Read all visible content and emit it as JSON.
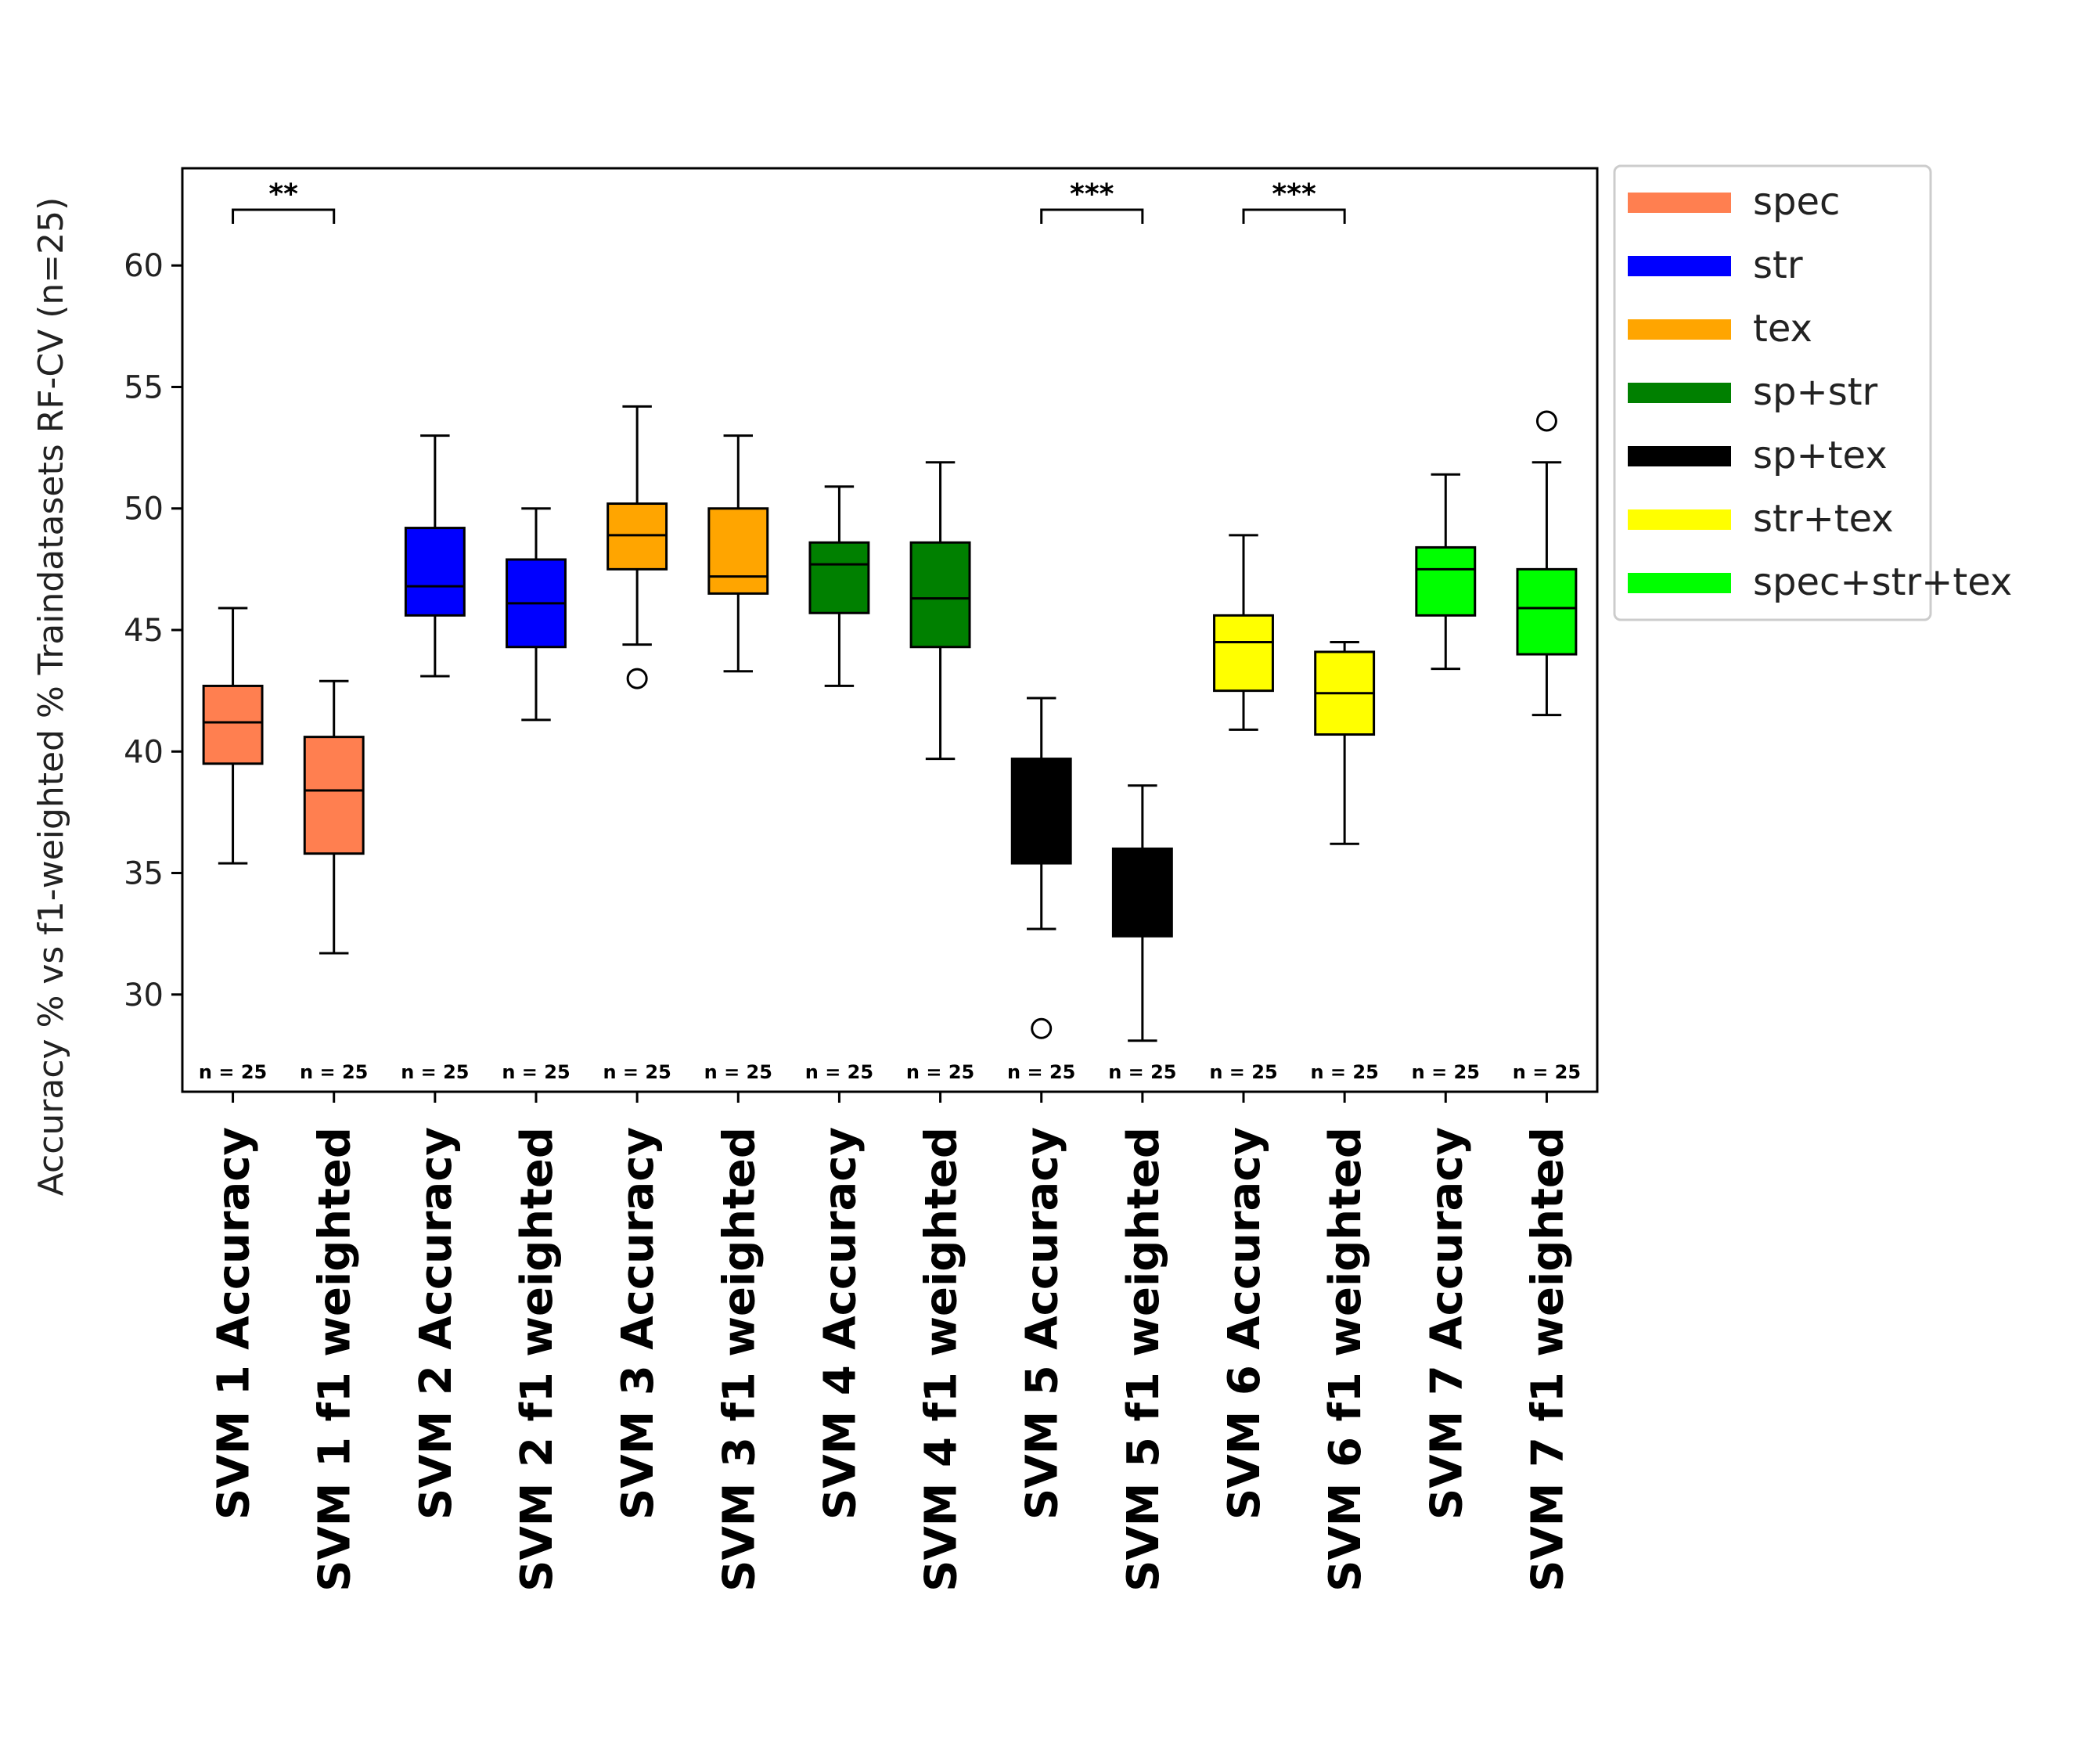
{
  "chart_data": {
    "type": "box",
    "ylabel": "Accuracy % vs f1-weighted % Traindatasets RF-CV (n=25)",
    "ylim": [
      26,
      64
    ],
    "yticks": [
      30,
      35,
      40,
      45,
      50,
      55,
      60
    ],
    "n_label": "n = 25",
    "categories": [
      "SVM 1 Accuracy",
      "SVM 1 f1 weighted",
      "SVM 2 Accuracy",
      "SVM 2 f1 weighted",
      "SVM 3 Accuracy",
      "SVM 3 f1 weighted",
      "SVM 4 Accuracy",
      "SVM 4 f1 weighted",
      "SVM 5 Accuracy",
      "SVM 5 f1 weighted",
      "SVM 6 Accuracy",
      "SVM 6 f1 weighted",
      "SVM 7 Accuracy",
      "SVM 7 f1 weighted"
    ],
    "boxes": [
      {
        "group": "spec",
        "whislo": 35.4,
        "q1": 39.5,
        "med": 41.2,
        "q3": 42.7,
        "whishi": 45.9,
        "fliers": []
      },
      {
        "group": "spec",
        "whislo": 31.7,
        "q1": 35.8,
        "med": 38.4,
        "q3": 40.6,
        "whishi": 42.9,
        "fliers": []
      },
      {
        "group": "str",
        "whislo": 43.1,
        "q1": 45.6,
        "med": 46.8,
        "q3": 49.2,
        "whishi": 53.0,
        "fliers": []
      },
      {
        "group": "str",
        "whislo": 41.3,
        "q1": 44.3,
        "med": 46.1,
        "q3": 47.9,
        "whishi": 50.0,
        "fliers": []
      },
      {
        "group": "tex",
        "whislo": 44.4,
        "q1": 47.5,
        "med": 48.9,
        "q3": 50.2,
        "whishi": 54.2,
        "fliers": [
          43.0
        ]
      },
      {
        "group": "tex",
        "whislo": 43.3,
        "q1": 46.5,
        "med": 47.2,
        "q3": 50.0,
        "whishi": 53.0,
        "fliers": []
      },
      {
        "group": "sp+str",
        "whislo": 42.7,
        "q1": 45.7,
        "med": 47.7,
        "q3": 48.6,
        "whishi": 50.9,
        "fliers": []
      },
      {
        "group": "sp+str",
        "whislo": 39.7,
        "q1": 44.3,
        "med": 46.3,
        "q3": 48.6,
        "whishi": 51.9,
        "fliers": []
      },
      {
        "group": "sp+tex",
        "whislo": 32.7,
        "q1": 35.4,
        "med": 37.0,
        "q3": 39.7,
        "whishi": 42.2,
        "fliers": [
          28.6
        ]
      },
      {
        "group": "sp+tex",
        "whislo": 28.1,
        "q1": 32.4,
        "med": 34.0,
        "q3": 36.0,
        "whishi": 38.6,
        "fliers": []
      },
      {
        "group": "str+tex",
        "whislo": 40.9,
        "q1": 42.5,
        "med": 44.5,
        "q3": 45.6,
        "whishi": 48.9,
        "fliers": []
      },
      {
        "group": "str+tex",
        "whislo": 36.2,
        "q1": 40.7,
        "med": 42.4,
        "q3": 44.1,
        "whishi": 44.5,
        "fliers": []
      },
      {
        "group": "spec+str+tex",
        "whislo": 43.4,
        "q1": 45.6,
        "med": 47.5,
        "q3": 48.4,
        "whishi": 51.4,
        "fliers": []
      },
      {
        "group": "spec+str+tex",
        "whislo": 41.5,
        "q1": 44.0,
        "med": 45.9,
        "q3": 47.5,
        "whishi": 51.9,
        "fliers": [
          53.6
        ]
      }
    ],
    "significance": [
      {
        "from": 0,
        "to": 1,
        "label": "**"
      },
      {
        "from": 8,
        "to": 9,
        "label": "***"
      },
      {
        "from": 10,
        "to": 11,
        "label": "***"
      }
    ],
    "legend": {
      "placement": "outside-right-top",
      "entries": [
        {
          "label": "spec",
          "color": "#ff7f50"
        },
        {
          "label": "str",
          "color": "#0000ff"
        },
        {
          "label": "tex",
          "color": "#ffa500"
        },
        {
          "label": "sp+str",
          "color": "#008000"
        },
        {
          "label": "sp+tex",
          "color": "#000000"
        },
        {
          "label": "str+tex",
          "color": "#ffff00"
        },
        {
          "label": "spec+str+tex",
          "color": "#00ff00"
        }
      ]
    }
  }
}
